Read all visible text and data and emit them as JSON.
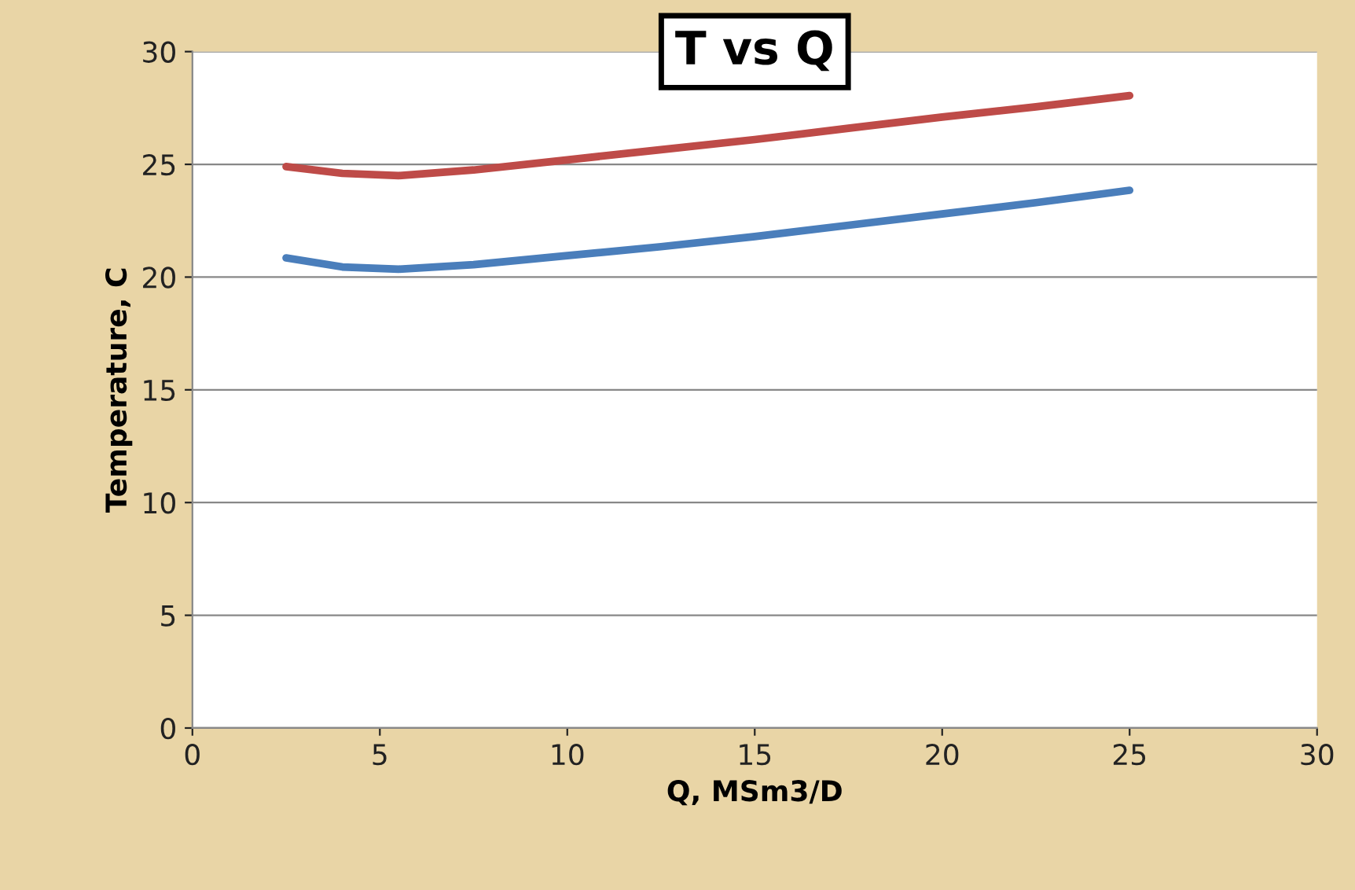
{
  "chart_data": {
    "type": "line",
    "title": "T vs Q",
    "xlabel": "Q, MSm3/D",
    "ylabel": "Temperature, C",
    "x": [
      2.5,
      4,
      5.5,
      7.5,
      10,
      12.5,
      15,
      17.5,
      20,
      22.5,
      25
    ],
    "series": [
      {
        "color": "#4a7ebb",
        "values": [
          20.85,
          20.45,
          20.35,
          20.55,
          20.95,
          21.35,
          21.8,
          22.3,
          22.8,
          23.3,
          23.85
        ]
      },
      {
        "color": "#be4b48",
        "values": [
          24.9,
          24.6,
          24.5,
          24.75,
          25.2,
          25.65,
          26.1,
          26.6,
          27.1,
          27.55,
          28.05
        ]
      }
    ],
    "xlim": [
      0,
      30
    ],
    "ylim": [
      0,
      30
    ],
    "xticks": [
      0,
      5,
      10,
      15,
      20,
      25,
      30
    ],
    "yticks": [
      0,
      5,
      10,
      15,
      20,
      25,
      30
    ],
    "grid": "y",
    "line_style": "solid",
    "marker": "none"
  }
}
